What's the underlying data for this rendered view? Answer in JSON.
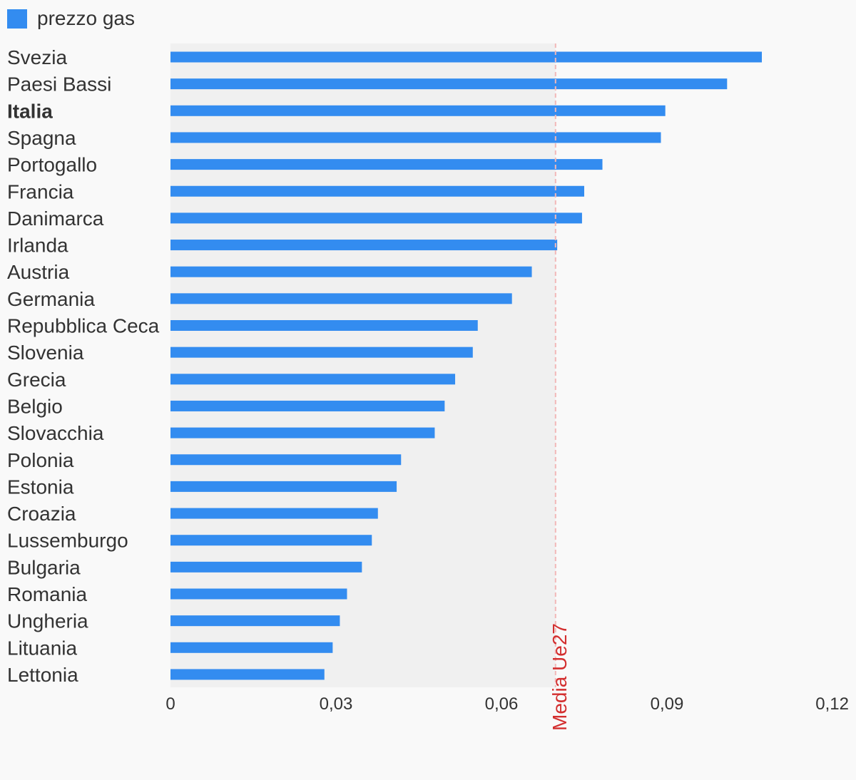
{
  "chart_data": {
    "type": "bar",
    "orientation": "horizontal",
    "categories": [
      "Svezia",
      "Paesi Bassi",
      "Italia",
      "Spagna",
      "Portogallo",
      "Francia",
      "Danimarca",
      "Irlanda",
      "Austria",
      "Germania",
      "Repubblica Ceca",
      "Slovenia",
      "Grecia",
      "Belgio",
      "Slovacchia",
      "Polonia",
      "Estonia",
      "Croazia",
      "Lussemburgo",
      "Bulgaria",
      "Romania",
      "Ungheria",
      "Lituania",
      "Lettonia"
    ],
    "highlighted_category": "Italia",
    "series": [
      {
        "name": "prezzo gas",
        "color": "#338cf0",
        "values": [
          0.1072,
          0.1009,
          0.0897,
          0.0889,
          0.0783,
          0.075,
          0.0746,
          0.0701,
          0.0655,
          0.0619,
          0.0557,
          0.0548,
          0.0516,
          0.0497,
          0.0479,
          0.0418,
          0.041,
          0.0376,
          0.0365,
          0.0347,
          0.032,
          0.0307,
          0.0294,
          0.0279
        ]
      }
    ],
    "xlim": [
      0,
      0.12
    ],
    "ticks": [
      0,
      0.03,
      0.06,
      0.09,
      0.12
    ],
    "tick_labels": [
      "0",
      "0,03",
      "0,06",
      "0,09",
      "0,12"
    ],
    "reference_line": {
      "label": "Media Ue27",
      "value": 0.0698,
      "color": "#d32f2f"
    },
    "shaded_region": {
      "from": 0,
      "to": 0.0698,
      "color": "#f0f0f0"
    },
    "legend_position": "top-left",
    "grid": false
  }
}
